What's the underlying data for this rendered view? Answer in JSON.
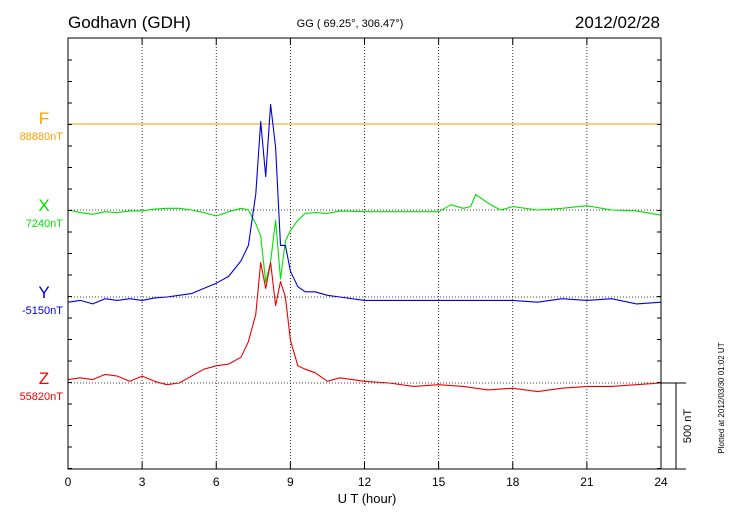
{
  "chart_data": {
    "type": "line",
    "station": "Godhavn (GDH)",
    "coords": "GG ( 69.25°, 306.47°)",
    "date": "2012/02/28",
    "xlabel": "U T (hour)",
    "xlim": [
      0,
      24
    ],
    "xticks": [
      "0",
      "3",
      "6",
      "9",
      "12",
      "15",
      "18",
      "21",
      "24"
    ],
    "grid": true,
    "scale_bar_label": "500 nT",
    "plotted_note": "Plotted at 2012/03/30 01:02 UT",
    "series": [
      {
        "name": "F",
        "baseline_label": "88880nT",
        "color": "#f2a300",
        "x": [
          0,
          24
        ],
        "y": [
          0,
          0
        ]
      },
      {
        "name": "X",
        "baseline_label": "7240nT",
        "color": "#00e000",
        "x": [
          0,
          0.5,
          1,
          1.5,
          2,
          2.5,
          3,
          3.5,
          4,
          4.5,
          5,
          5.5,
          6,
          6.5,
          7,
          7.3,
          7.6,
          7.8,
          8.0,
          8.2,
          8.4,
          8.6,
          8.8,
          9.0,
          9.3,
          9.6,
          10,
          10.5,
          11,
          12,
          13,
          14,
          15,
          15.5,
          16,
          16.3,
          16.5,
          17,
          17.5,
          18,
          19,
          20,
          21,
          22,
          23,
          24
        ],
        "y": [
          0,
          -15,
          -25,
          -10,
          -15,
          -5,
          -5,
          5,
          10,
          10,
          0,
          -15,
          -35,
          -10,
          10,
          0,
          -80,
          -150,
          -420,
          -300,
          -60,
          -400,
          -180,
          -120,
          -60,
          -20,
          -15,
          -20,
          -5,
          -10,
          -10,
          -10,
          -10,
          30,
          10,
          20,
          90,
          40,
          0,
          20,
          0,
          10,
          25,
          0,
          -5,
          -30
        ]
      },
      {
        "name": "Y",
        "baseline_label": "-5150nT",
        "color": "#0000dd",
        "x": [
          0,
          0.5,
          1,
          1.5,
          2,
          2.5,
          3,
          3.5,
          4,
          4.5,
          5,
          5.5,
          6,
          6.5,
          7,
          7.3,
          7.6,
          7.8,
          8.0,
          8.2,
          8.4,
          8.6,
          8.8,
          9.0,
          9.3,
          9.6,
          10,
          10.5,
          11,
          12,
          13,
          14,
          15,
          16,
          17,
          18,
          19,
          20,
          21,
          22,
          23,
          24
        ],
        "y": [
          -30,
          -20,
          -40,
          -10,
          -20,
          -10,
          -20,
          -5,
          0,
          10,
          20,
          50,
          80,
          120,
          210,
          300,
          600,
          1020,
          700,
          1120,
          870,
          300,
          300,
          150,
          60,
          30,
          30,
          10,
          0,
          -20,
          -20,
          -20,
          -20,
          -20,
          -20,
          -20,
          -30,
          -10,
          -20,
          -10,
          -40,
          -30
        ]
      },
      {
        "name": "Z",
        "baseline_label": "55820nT",
        "color": "#ee0000",
        "x": [
          0,
          0.5,
          1,
          1.5,
          2,
          2.5,
          3,
          3.5,
          4,
          4.5,
          5,
          5.5,
          6,
          6.5,
          7,
          7.3,
          7.6,
          7.8,
          8.0,
          8.2,
          8.4,
          8.6,
          8.8,
          9.0,
          9.3,
          9.6,
          10,
          10.5,
          11,
          12,
          13,
          14,
          15,
          16,
          17,
          18,
          19,
          20,
          21,
          22,
          23,
          24
        ],
        "y": [
          20,
          30,
          20,
          50,
          40,
          10,
          40,
          10,
          -10,
          0,
          40,
          80,
          100,
          110,
          150,
          240,
          400,
          700,
          550,
          700,
          450,
          590,
          500,
          250,
          100,
          80,
          60,
          10,
          30,
          10,
          0,
          -20,
          -10,
          -20,
          -40,
          -30,
          -50,
          -30,
          -20,
          -20,
          -10,
          0
        ]
      }
    ]
  }
}
